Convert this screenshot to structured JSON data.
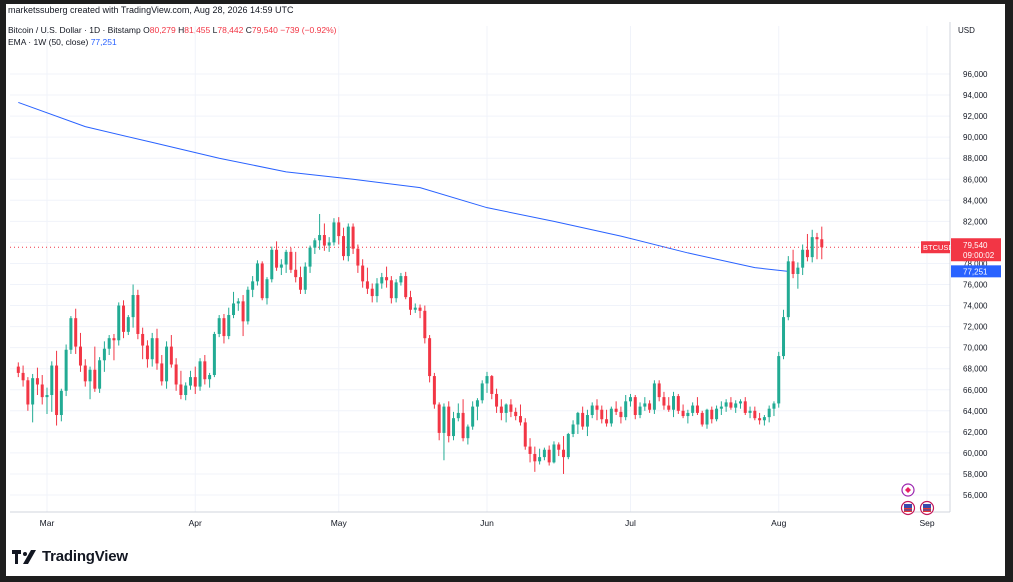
{
  "attribution": "marketssuberg created with TradingView.com, Aug 28, 2026 14:59 UTC",
  "legend": {
    "symbol": "Bitcoin / U.S. Dollar · 1D · Bitstamp",
    "o_label": "O",
    "o_value": "80,279",
    "h_label": "H",
    "h_value": "81,455",
    "l_label": "L",
    "l_value": "78,442",
    "c_label": "C",
    "c_value": "79,540",
    "change": "−739 (−0.92%)",
    "ema_label": "EMA · 1W (50, close)",
    "ema_value": "77,251"
  },
  "price_axis": {
    "currency": "USD",
    "ticks": [
      "96,000",
      "94,000",
      "92,000",
      "90,000",
      "88,000",
      "86,000",
      "84,000",
      "82,000",
      "80,000",
      "78,000",
      "76,000",
      "74,000",
      "72,000",
      "70,000",
      "68,000",
      "66,000",
      "64,000",
      "62,000",
      "60,000",
      "58,000",
      "56,000"
    ]
  },
  "time_axis": {
    "ticks": [
      "Mar",
      "Apr",
      "May",
      "Jun",
      "Jul",
      "Aug",
      "Sep"
    ]
  },
  "last_price": {
    "symbol": "BTCUSD",
    "price": "79,540",
    "countdown": "09:00:02"
  },
  "ema_tag": "77,251",
  "brand": "TradingView",
  "colors": {
    "up": "#22ab94",
    "down": "#f23645",
    "ema": "#2962ff",
    "grid": "#f0f3fa"
  },
  "chart_data": {
    "type": "candlestick",
    "title": "Bitcoin / U.S. Dollar · 1D · Bitstamp",
    "ylim": [
      55000,
      97500
    ],
    "grid": true,
    "ohlc_daily": [
      [
        68200,
        68600,
        67200,
        67600
      ],
      [
        67600,
        68300,
        66300,
        66900
      ],
      [
        66900,
        67200,
        64000,
        64600
      ],
      [
        64600,
        67500,
        62900,
        67100
      ],
      [
        67100,
        68100,
        65500,
        66500
      ],
      [
        66500,
        67400,
        64600,
        65300
      ],
      [
        65300,
        66200,
        63700,
        65500
      ],
      [
        65500,
        68700,
        63900,
        68300
      ],
      [
        68300,
        69700,
        62600,
        63600
      ],
      [
        63600,
        66100,
        63000,
        65900
      ],
      [
        65900,
        70300,
        65400,
        69800
      ],
      [
        69800,
        73000,
        69400,
        72800
      ],
      [
        72800,
        73700,
        69400,
        70100
      ],
      [
        70100,
        71400,
        67700,
        68300
      ],
      [
        68300,
        68900,
        66300,
        66800
      ],
      [
        66800,
        68200,
        65100,
        67900
      ],
      [
        67900,
        70100,
        65800,
        66100
      ],
      [
        66100,
        69100,
        65700,
        68800
      ],
      [
        68800,
        70600,
        67700,
        69900
      ],
      [
        69900,
        71200,
        69300,
        70900
      ],
      [
        70900,
        71300,
        68800,
        70700
      ],
      [
        70700,
        74300,
        70200,
        74000
      ],
      [
        74000,
        74500,
        70900,
        71500
      ],
      [
        71500,
        73100,
        71200,
        72900
      ],
      [
        72900,
        76000,
        71900,
        75000
      ],
      [
        75000,
        75500,
        70800,
        71300
      ],
      [
        71300,
        71900,
        68900,
        70200
      ],
      [
        70200,
        70700,
        68100,
        68900
      ],
      [
        68900,
        71400,
        68200,
        70900
      ],
      [
        70900,
        71800,
        67900,
        68500
      ],
      [
        68500,
        69300,
        66400,
        66800
      ],
      [
        66800,
        70600,
        66100,
        70100
      ],
      [
        70100,
        71200,
        68100,
        68400
      ],
      [
        68400,
        69000,
        65900,
        66500
      ],
      [
        66500,
        67800,
        65100,
        65500
      ],
      [
        65500,
        66700,
        65000,
        66400
      ],
      [
        66400,
        67800,
        66000,
        67200
      ],
      [
        67200,
        68200,
        65600,
        66300
      ],
      [
        66300,
        69000,
        65900,
        68700
      ],
      [
        68700,
        69300,
        66500,
        67000
      ],
      [
        67000,
        67600,
        66200,
        67400
      ],
      [
        67400,
        71500,
        67200,
        71300
      ],
      [
        71300,
        73100,
        71000,
        72800
      ],
      [
        72800,
        73200,
        70400,
        71100
      ],
      [
        71100,
        73800,
        70800,
        73100
      ],
      [
        73100,
        75300,
        72800,
        74200
      ],
      [
        74200,
        74700,
        73500,
        74400
      ],
      [
        74400,
        75000,
        71100,
        72500
      ],
      [
        72500,
        75800,
        72200,
        75500
      ],
      [
        75500,
        76800,
        74800,
        76300
      ],
      [
        76300,
        78300,
        75900,
        78000
      ],
      [
        78000,
        78200,
        74500,
        74700
      ],
      [
        74700,
        76700,
        74100,
        76500
      ],
      [
        76500,
        79600,
        76200,
        79300
      ],
      [
        79300,
        80100,
        77300,
        77600
      ],
      [
        77600,
        78400,
        76900,
        77900
      ],
      [
        77900,
        79300,
        77100,
        79100
      ],
      [
        79100,
        79500,
        77100,
        77400
      ],
      [
        77400,
        79100,
        76200,
        76700
      ],
      [
        76700,
        77700,
        75100,
        75500
      ],
      [
        75500,
        78100,
        75100,
        77700
      ],
      [
        77700,
        79700,
        77100,
        79500
      ],
      [
        79500,
        80400,
        78900,
        80200
      ],
      [
        80200,
        82700,
        79300,
        80700
      ],
      [
        80700,
        81800,
        79200,
        79700
      ],
      [
        79700,
        80500,
        79100,
        80000
      ],
      [
        80000,
        82300,
        79700,
        81900
      ],
      [
        81900,
        82400,
        79800,
        80600
      ],
      [
        80600,
        81400,
        78300,
        78700
      ],
      [
        78700,
        81800,
        78200,
        81500
      ],
      [
        81500,
        81800,
        78900,
        79400
      ],
      [
        79400,
        79800,
        77100,
        77800
      ],
      [
        77800,
        78400,
        75700,
        76300
      ],
      [
        76300,
        77600,
        75100,
        75600
      ],
      [
        75600,
        76100,
        74300,
        74900
      ],
      [
        74900,
        76600,
        74300,
        76100
      ],
      [
        76100,
        77100,
        75600,
        76700
      ],
      [
        76700,
        77700,
        75700,
        76400
      ],
      [
        76400,
        76800,
        74200,
        74700
      ],
      [
        74700,
        76500,
        74300,
        76200
      ],
      [
        76200,
        77100,
        75900,
        76800
      ],
      [
        76800,
        77200,
        74600,
        74800
      ],
      [
        74800,
        75400,
        73100,
        73600
      ],
      [
        73600,
        74200,
        73300,
        73800
      ],
      [
        73800,
        74100,
        72800,
        73500
      ],
      [
        73500,
        74000,
        70400,
        70900
      ],
      [
        70900,
        71200,
        66700,
        67300
      ],
      [
        67300,
        67600,
        64200,
        64600
      ],
      [
        64600,
        64800,
        61200,
        61900
      ],
      [
        61900,
        64700,
        59300,
        64400
      ],
      [
        64400,
        64900,
        61000,
        61600
      ],
      [
        61600,
        63900,
        61200,
        63300
      ],
      [
        63300,
        64700,
        63000,
        63800
      ],
      [
        63800,
        65100,
        61100,
        61400
      ],
      [
        61400,
        62700,
        60800,
        62500
      ],
      [
        62500,
        64900,
        62200,
        64400
      ],
      [
        64400,
        65200,
        63100,
        65000
      ],
      [
        65000,
        66900,
        64700,
        66600
      ],
      [
        66600,
        67700,
        65700,
        67300
      ],
      [
        67300,
        67400,
        65100,
        65600
      ],
      [
        65600,
        66100,
        63800,
        64400
      ],
      [
        64400,
        65100,
        63100,
        63800
      ],
      [
        63800,
        64700,
        62900,
        64600
      ],
      [
        64600,
        65100,
        63400,
        63900
      ],
      [
        63900,
        64300,
        63100,
        63500
      ],
      [
        63500,
        64600,
        62600,
        62900
      ],
      [
        62900,
        63300,
        60300,
        60600
      ],
      [
        60600,
        61400,
        59100,
        59900
      ],
      [
        59900,
        60600,
        58200,
        59200
      ],
      [
        59200,
        60400,
        58900,
        59600
      ],
      [
        59600,
        60500,
        59300,
        60300
      ],
      [
        60300,
        60700,
        58800,
        59100
      ],
      [
        59100,
        61100,
        59000,
        60800
      ],
      [
        60800,
        61000,
        59700,
        60300
      ],
      [
        60300,
        61600,
        58000,
        59600
      ],
      [
        59600,
        61900,
        59400,
        61800
      ],
      [
        61800,
        63100,
        61500,
        62700
      ],
      [
        62700,
        63900,
        61800,
        63800
      ],
      [
        63800,
        64400,
        62200,
        62500
      ],
      [
        62500,
        64100,
        61600,
        63600
      ],
      [
        63600,
        64800,
        63300,
        64500
      ],
      [
        64500,
        65100,
        63100,
        64100
      ],
      [
        64100,
        64500,
        62800,
        63200
      ],
      [
        63200,
        64100,
        62500,
        62800
      ],
      [
        62800,
        64400,
        62500,
        64200
      ],
      [
        64200,
        64900,
        63600,
        63900
      ],
      [
        63900,
        64400,
        62800,
        63400
      ],
      [
        63400,
        65500,
        63100,
        64900
      ],
      [
        64900,
        65600,
        64400,
        65300
      ],
      [
        65300,
        65500,
        63200,
        63600
      ],
      [
        63600,
        64800,
        63300,
        64400
      ],
      [
        64400,
        65300,
        64000,
        64700
      ],
      [
        64700,
        65000,
        63800,
        64100
      ],
      [
        64100,
        66900,
        63700,
        66600
      ],
      [
        66600,
        66900,
        64900,
        65300
      ],
      [
        65300,
        65800,
        64100,
        64500
      ],
      [
        64500,
        65300,
        63900,
        64100
      ],
      [
        64100,
        65800,
        63400,
        65400
      ],
      [
        65400,
        65600,
        63700,
        64000
      ],
      [
        64000,
        64600,
        63300,
        63500
      ],
      [
        63500,
        64100,
        62800,
        63800
      ],
      [
        63800,
        64800,
        63500,
        64500
      ],
      [
        64500,
        65300,
        63600,
        63800
      ],
      [
        63800,
        64000,
        62500,
        62700
      ],
      [
        62700,
        64200,
        62300,
        64100
      ],
      [
        64100,
        64400,
        62800,
        63200
      ],
      [
        63200,
        64500,
        63000,
        64200
      ],
      [
        64200,
        64900,
        63600,
        64400
      ],
      [
        64400,
        65100,
        63900,
        64800
      ],
      [
        64800,
        65300,
        64100,
        64300
      ],
      [
        64300,
        65000,
        63800,
        64700
      ],
      [
        64700,
        65100,
        64200,
        64900
      ],
      [
        64900,
        65300,
        63600,
        63800
      ],
      [
        63800,
        64400,
        63300,
        64000
      ],
      [
        64000,
        64400,
        63100,
        63300
      ],
      [
        63300,
        63800,
        62700,
        63100
      ],
      [
        63100,
        63600,
        62600,
        63400
      ],
      [
        63400,
        64500,
        62900,
        64200
      ],
      [
        64200,
        64900,
        63500,
        64700
      ],
      [
        64700,
        69600,
        64300,
        69200
      ],
      [
        69200,
        73600,
        68900,
        72900
      ],
      [
        72900,
        78700,
        72600,
        78200
      ],
      [
        78200,
        79300,
        76600,
        77000
      ],
      [
        77000,
        78100,
        75600,
        77600
      ],
      [
        77600,
        79800,
        76900,
        79300
      ],
      [
        79300,
        80800,
        78200,
        78600
      ],
      [
        78600,
        81200,
        78100,
        80500
      ],
      [
        80500,
        80900,
        78400,
        80300
      ],
      [
        80300,
        81500,
        78400,
        79540
      ]
    ],
    "ema_1w_50": [
      [
        0,
        93300
      ],
      [
        14,
        91000
      ],
      [
        28,
        89500
      ],
      [
        42,
        88000
      ],
      [
        56,
        86700
      ],
      [
        70,
        86000
      ],
      [
        84,
        85200
      ],
      [
        98,
        83300
      ],
      [
        112,
        82000
      ],
      [
        126,
        80600
      ],
      [
        140,
        79000
      ],
      [
        154,
        77600
      ],
      [
        161,
        77251
      ]
    ]
  }
}
